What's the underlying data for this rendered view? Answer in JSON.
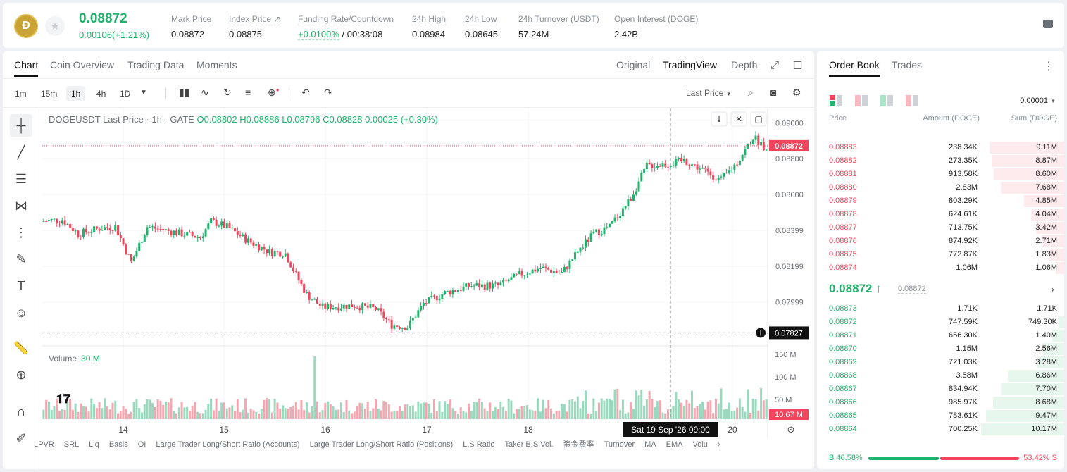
{
  "header": {
    "logo_glyph": "Ð",
    "last_price": "0.08872",
    "change": "0.00106(+1.21%)",
    "stats": [
      {
        "label": "Mark Price",
        "value": "0.08872"
      },
      {
        "label": "Index Price ↗",
        "value": "0.08875"
      },
      {
        "label": "Funding Rate/Countdown",
        "value_green": "+0.0100%",
        "value": " / 00:38:08"
      },
      {
        "label": "24h High",
        "value": "0.08984"
      },
      {
        "label": "24h Low",
        "value": "0.08645"
      },
      {
        "label": "24h Turnover (USDT)",
        "value": "57.24M"
      },
      {
        "label": "Open Interest (DOGE)",
        "value": "2.42B"
      }
    ]
  },
  "chart_tabs": [
    "Chart",
    "Coin Overview",
    "Trading Data",
    "Moments"
  ],
  "view_tabs": [
    "Original",
    "TradingView",
    "Depth"
  ],
  "timeframes": [
    "1m",
    "15m",
    "1h",
    "4h",
    "1D"
  ],
  "toolbar": {
    "price_type": "Last Price"
  },
  "legend": {
    "symbol": "DOGEUSDT Last Price · 1h · GATE",
    "o": "O0.08802",
    "h": "H0.08886",
    "l": "L0.08796",
    "c": "C0.08828",
    "chg": "0.00025 (+0.30%)"
  },
  "volume_legend": {
    "label": "Volume",
    "value": "30 M"
  },
  "chart_data": {
    "type": "candlestick",
    "symbol": "DOGEUSDT",
    "interval": "1h",
    "y_ticks": [
      "0.09000",
      "0.08800",
      "0.08600",
      "0.08399",
      "0.08199",
      "0.07999"
    ],
    "ylim": [
      0.0775,
      0.0908
    ],
    "x_ticks": [
      "14",
      "15",
      "16",
      "17",
      "18",
      "20"
    ],
    "volume_ticks": [
      "150 M",
      "100 M",
      "50 M"
    ],
    "last_price_label": "0.08872",
    "crosshair_price_label": "0.07827",
    "crosshair_time_label": "Sat 19 Sep '26   09:00",
    "current_volume_label": "10.67 M",
    "anchors": [
      [
        0,
        0.0845
      ],
      [
        8,
        0.0846
      ],
      [
        14,
        0.0838
      ],
      [
        22,
        0.0841
      ],
      [
        28,
        0.0842
      ],
      [
        34,
        0.0822
      ],
      [
        40,
        0.0842
      ],
      [
        50,
        0.0839
      ],
      [
        60,
        0.0836
      ],
      [
        64,
        0.0845
      ],
      [
        70,
        0.0842
      ],
      [
        78,
        0.0834
      ],
      [
        86,
        0.0828
      ],
      [
        92,
        0.0827
      ],
      [
        96,
        0.0815
      ],
      [
        100,
        0.0804
      ],
      [
        106,
        0.0797
      ],
      [
        118,
        0.0798
      ],
      [
        126,
        0.0796
      ],
      [
        132,
        0.0787
      ],
      [
        138,
        0.0786
      ],
      [
        144,
        0.0799
      ],
      [
        152,
        0.0805
      ],
      [
        162,
        0.0809
      ],
      [
        172,
        0.0809
      ],
      [
        180,
        0.0815
      ],
      [
        188,
        0.0819
      ],
      [
        196,
        0.0816
      ],
      [
        202,
        0.0828
      ],
      [
        208,
        0.0838
      ],
      [
        214,
        0.0842
      ],
      [
        222,
        0.0858
      ],
      [
        228,
        0.0876
      ],
      [
        236,
        0.0877
      ],
      [
        242,
        0.0879
      ],
      [
        250,
        0.0873
      ],
      [
        256,
        0.0868
      ],
      [
        262,
        0.0878
      ],
      [
        268,
        0.0892
      ],
      [
        272,
        0.0887
      ]
    ]
  },
  "bottom_indicators": [
    "LPVR",
    "SRL",
    "Liq",
    "Basis",
    "OI",
    "Large Trader Long/Short Ratio (Accounts)",
    "Large Trader Long/Short Ratio (Positions)",
    "L.S Ratio",
    "Taker B.S Vol.",
    "资金费率",
    "Turnover",
    "MA",
    "EMA",
    "Volu"
  ],
  "orderbook": {
    "tabs": [
      "Order Book",
      "Trades"
    ],
    "precision": "0.00001",
    "headers": {
      "price": "Price",
      "amount": "Amount (DOGE)",
      "sum": "Sum (DOGE)"
    },
    "asks": [
      {
        "price": "0.08883",
        "amount": "238.34K",
        "sum": "9.11M",
        "depth": 0.9
      },
      {
        "price": "0.08882",
        "amount": "273.35K",
        "sum": "8.87M",
        "depth": 0.875
      },
      {
        "price": "0.08881",
        "amount": "913.58K",
        "sum": "8.60M",
        "depth": 0.85
      },
      {
        "price": "0.08880",
        "amount": "2.83M",
        "sum": "7.68M",
        "depth": 0.76
      },
      {
        "price": "0.08879",
        "amount": "803.29K",
        "sum": "4.85M",
        "depth": 0.48
      },
      {
        "price": "0.08878",
        "amount": "624.61K",
        "sum": "4.04M",
        "depth": 0.4
      },
      {
        "price": "0.08877",
        "amount": "713.75K",
        "sum": "3.42M",
        "depth": 0.34
      },
      {
        "price": "0.08876",
        "amount": "874.92K",
        "sum": "2.71M",
        "depth": 0.27
      },
      {
        "price": "0.08875",
        "amount": "772.87K",
        "sum": "1.83M",
        "depth": 0.18
      },
      {
        "price": "0.08874",
        "amount": "1.06M",
        "sum": "1.06M",
        "depth": 0.1
      }
    ],
    "mid_price": "0.08872 ↑",
    "mid_ref": "0.08872",
    "bids": [
      {
        "price": "0.08873",
        "amount": "1.71K",
        "sum": "1.71K",
        "depth": 0.0
      },
      {
        "price": "0.08872",
        "amount": "747.59K",
        "sum": "749.30K",
        "depth": 0.07
      },
      {
        "price": "0.08871",
        "amount": "656.30K",
        "sum": "1.40M",
        "depth": 0.14
      },
      {
        "price": "0.08870",
        "amount": "1.15M",
        "sum": "2.56M",
        "depth": 0.25
      },
      {
        "price": "0.08869",
        "amount": "721.03K",
        "sum": "3.28M",
        "depth": 0.32
      },
      {
        "price": "0.08868",
        "amount": "3.58M",
        "sum": "6.86M",
        "depth": 0.68
      },
      {
        "price": "0.08867",
        "amount": "834.94K",
        "sum": "7.70M",
        "depth": 0.76
      },
      {
        "price": "0.08866",
        "amount": "985.97K",
        "sum": "8.68M",
        "depth": 0.86
      },
      {
        "price": "0.08865",
        "amount": "783.61K",
        "sum": "9.47M",
        "depth": 0.94
      },
      {
        "price": "0.08864",
        "amount": "700.25K",
        "sum": "10.17M",
        "depth": 1.0
      }
    ],
    "buy_ratio": "46.58%",
    "sell_ratio": "53.42%",
    "buy_label": "B",
    "sell_label": "S"
  },
  "colors": {
    "up": "#20b26c",
    "down": "#f0455c"
  }
}
